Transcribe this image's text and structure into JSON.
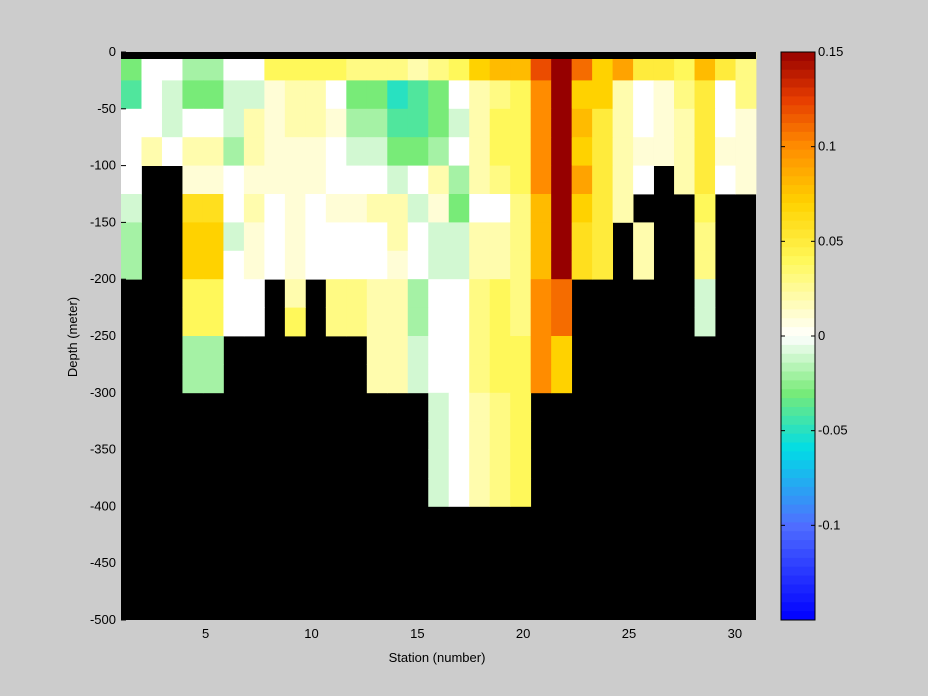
{
  "chart_data": {
    "type": "heatmap",
    "xlabel": "Station (number)",
    "ylabel": "Depth (meter)",
    "xlim": [
      1,
      31
    ],
    "ylim": [
      -500,
      0
    ],
    "x_ticks": [
      5,
      10,
      15,
      20,
      25,
      30
    ],
    "y_ticks": [
      0,
      -50,
      -100,
      -150,
      -200,
      -250,
      -300,
      -350,
      -400,
      -450,
      -500
    ],
    "colorbar": {
      "range": [
        -0.15,
        0.15
      ],
      "ticks": [
        0.15,
        0.1,
        0.05,
        0,
        -0.05,
        -0.1
      ],
      "tick_labels": [
        "0.15",
        "0.1",
        "0.05",
        "0",
        "-0.05",
        "-0.1"
      ],
      "colormap": "blue-cyan-green-white-yellow-orange-darkred"
    },
    "no_data_color": "#000000",
    "surface_band_color": "#000000",
    "stations": [
      1,
      2,
      3,
      4,
      5,
      6,
      7,
      8,
      9,
      10,
      11,
      12,
      13,
      14,
      15,
      16,
      17,
      18,
      19,
      20,
      21,
      22,
      23,
      24,
      25,
      26,
      27,
      28,
      29,
      30,
      31
    ],
    "depths": [
      0,
      -25,
      -50,
      -75,
      -100,
      -125,
      -150,
      -175,
      -200,
      -225,
      -250,
      -275,
      -300,
      -325,
      -350,
      -375,
      -400,
      -425,
      -450,
      -475
    ],
    "values": [
      [
        -0.03,
        0.0,
        0.0,
        -0.02,
        -0.02,
        0.0,
        0.0,
        0.04,
        0.04,
        0.04,
        0.04,
        0.03,
        0.03,
        0.03,
        0.02,
        0.03,
        0.04,
        0.07,
        0.08,
        0.08,
        0.12,
        0.15,
        0.11,
        0.07,
        0.09,
        0.05,
        0.05,
        0.04,
        0.08,
        0.05,
        0.03
      ],
      [
        -0.04,
        0.0,
        -0.01,
        -0.03,
        -0.03,
        -0.01,
        -0.01,
        0.01,
        0.02,
        0.02,
        0.0,
        -0.03,
        -0.03,
        -0.05,
        -0.04,
        -0.03,
        0.0,
        0.02,
        0.03,
        0.04,
        0.1,
        0.15,
        0.07,
        0.07,
        0.02,
        0.0,
        0.01,
        0.03,
        0.05,
        0.0,
        0.03
      ],
      [
        0.0,
        0.0,
        -0.01,
        0.0,
        0.0,
        -0.01,
        0.02,
        0.01,
        0.02,
        0.02,
        0.01,
        -0.02,
        -0.02,
        -0.04,
        -0.04,
        -0.03,
        -0.01,
        0.02,
        0.04,
        0.04,
        0.1,
        0.15,
        0.08,
        0.05,
        0.02,
        0.0,
        0.01,
        0.02,
        0.05,
        0.0,
        0.01
      ],
      [
        0.0,
        0.02,
        0.0,
        0.02,
        0.02,
        -0.02,
        0.02,
        0.01,
        0.01,
        0.01,
        0.0,
        -0.01,
        -0.01,
        -0.03,
        -0.03,
        -0.02,
        0.0,
        0.02,
        0.04,
        0.04,
        0.1,
        0.15,
        0.07,
        0.05,
        0.02,
        0.01,
        0.01,
        0.02,
        0.05,
        0.01,
        0.01
      ],
      [
        0.0,
        null,
        null,
        0.01,
        0.01,
        0.0,
        0.01,
        0.01,
        0.01,
        0.01,
        0.0,
        0.0,
        0.0,
        -0.01,
        0.0,
        0.02,
        -0.02,
        0.02,
        0.03,
        0.04,
        0.1,
        0.15,
        0.09,
        0.05,
        0.02,
        0.0,
        null,
        0.02,
        0.05,
        0.0,
        0.01
      ],
      [
        -0.01,
        null,
        null,
        0.06,
        0.06,
        0.0,
        0.02,
        0.0,
        0.01,
        0.0,
        0.01,
        0.01,
        0.02,
        0.02,
        -0.01,
        0.01,
        -0.03,
        0.0,
        0.0,
        0.03,
        0.08,
        0.15,
        0.07,
        0.05,
        0.02,
        null,
        null,
        null,
        0.04,
        null,
        null
      ],
      [
        -0.02,
        null,
        null,
        0.07,
        0.07,
        -0.01,
        0.01,
        0.0,
        0.01,
        0.0,
        0.0,
        0.0,
        0.0,
        0.02,
        0.0,
        -0.01,
        -0.01,
        0.02,
        0.02,
        0.03,
        0.08,
        0.15,
        0.06,
        0.05,
        null,
        0.02,
        null,
        null,
        0.03,
        null,
        null
      ],
      [
        -0.02,
        null,
        null,
        0.07,
        0.07,
        0.0,
        0.01,
        0.0,
        0.01,
        0.0,
        0.0,
        0.0,
        0.0,
        0.01,
        0.0,
        -0.01,
        -0.01,
        0.02,
        0.02,
        0.03,
        0.08,
        0.15,
        0.06,
        0.05,
        null,
        0.02,
        null,
        null,
        0.03,
        null,
        null
      ],
      [
        null,
        null,
        null,
        0.04,
        0.04,
        0.0,
        0.0,
        null,
        0.02,
        null,
        0.03,
        0.03,
        0.02,
        0.02,
        -0.02,
        0.0,
        0.0,
        0.03,
        0.04,
        0.03,
        0.1,
        0.11,
        null,
        null,
        null,
        null,
        null,
        null,
        -0.01,
        null,
        null
      ],
      [
        null,
        null,
        null,
        0.04,
        0.04,
        0.0,
        0.0,
        null,
        0.04,
        null,
        0.03,
        0.03,
        0.02,
        0.02,
        -0.02,
        0.0,
        0.0,
        0.03,
        0.04,
        0.03,
        0.1,
        0.11,
        null,
        null,
        null,
        null,
        null,
        null,
        -0.01,
        null,
        null
      ],
      [
        null,
        null,
        null,
        -0.02,
        -0.02,
        null,
        null,
        null,
        null,
        null,
        null,
        null,
        0.02,
        0.02,
        -0.01,
        0.0,
        0.0,
        0.03,
        0.04,
        0.04,
        0.1,
        0.07,
        null,
        null,
        null,
        null,
        null,
        null,
        null,
        null,
        null
      ],
      [
        null,
        null,
        null,
        -0.02,
        -0.02,
        null,
        null,
        null,
        null,
        null,
        null,
        null,
        0.02,
        0.02,
        -0.01,
        0.0,
        0.0,
        0.03,
        0.04,
        0.04,
        0.1,
        0.07,
        null,
        null,
        null,
        null,
        null,
        null,
        null,
        null,
        null
      ],
      [
        null,
        null,
        null,
        null,
        null,
        null,
        null,
        null,
        null,
        null,
        null,
        null,
        null,
        null,
        null,
        -0.01,
        0.0,
        0.02,
        0.03,
        0.04,
        null,
        null,
        null,
        null,
        null,
        null,
        null,
        null,
        null,
        null,
        null
      ],
      [
        null,
        null,
        null,
        null,
        null,
        null,
        null,
        null,
        null,
        null,
        null,
        null,
        null,
        null,
        null,
        -0.01,
        0.0,
        0.02,
        0.03,
        0.04,
        null,
        null,
        null,
        null,
        null,
        null,
        null,
        null,
        null,
        null,
        null
      ],
      [
        null,
        null,
        null,
        null,
        null,
        null,
        null,
        null,
        null,
        null,
        null,
        null,
        null,
        null,
        null,
        -0.01,
        0.0,
        0.02,
        0.03,
        0.04,
        null,
        null,
        null,
        null,
        null,
        null,
        null,
        null,
        null,
        null,
        null
      ],
      [
        null,
        null,
        null,
        null,
        null,
        null,
        null,
        null,
        null,
        null,
        null,
        null,
        null,
        null,
        null,
        -0.01,
        0.0,
        0.02,
        0.03,
        0.04,
        null,
        null,
        null,
        null,
        null,
        null,
        null,
        null,
        null,
        null,
        null
      ],
      [
        null,
        null,
        null,
        null,
        null,
        null,
        null,
        null,
        null,
        null,
        null,
        null,
        null,
        null,
        null,
        null,
        null,
        null,
        null,
        null,
        null,
        null,
        null,
        null,
        null,
        null,
        null,
        null,
        null,
        null,
        null
      ],
      [
        null,
        null,
        null,
        null,
        null,
        null,
        null,
        null,
        null,
        null,
        null,
        null,
        null,
        null,
        null,
        null,
        null,
        null,
        null,
        null,
        null,
        null,
        null,
        null,
        null,
        null,
        null,
        null,
        null,
        null,
        null
      ],
      [
        null,
        null,
        null,
        null,
        null,
        null,
        null,
        null,
        null,
        null,
        null,
        null,
        null,
        null,
        null,
        null,
        null,
        null,
        null,
        null,
        null,
        null,
        null,
        null,
        null,
        null,
        null,
        null,
        null,
        null,
        null
      ],
      [
        null,
        null,
        null,
        null,
        null,
        null,
        null,
        null,
        null,
        null,
        null,
        null,
        null,
        null,
        null,
        null,
        null,
        null,
        null,
        null,
        null,
        null,
        null,
        null,
        null,
        null,
        null,
        null,
        null,
        null,
        null
      ]
    ]
  }
}
